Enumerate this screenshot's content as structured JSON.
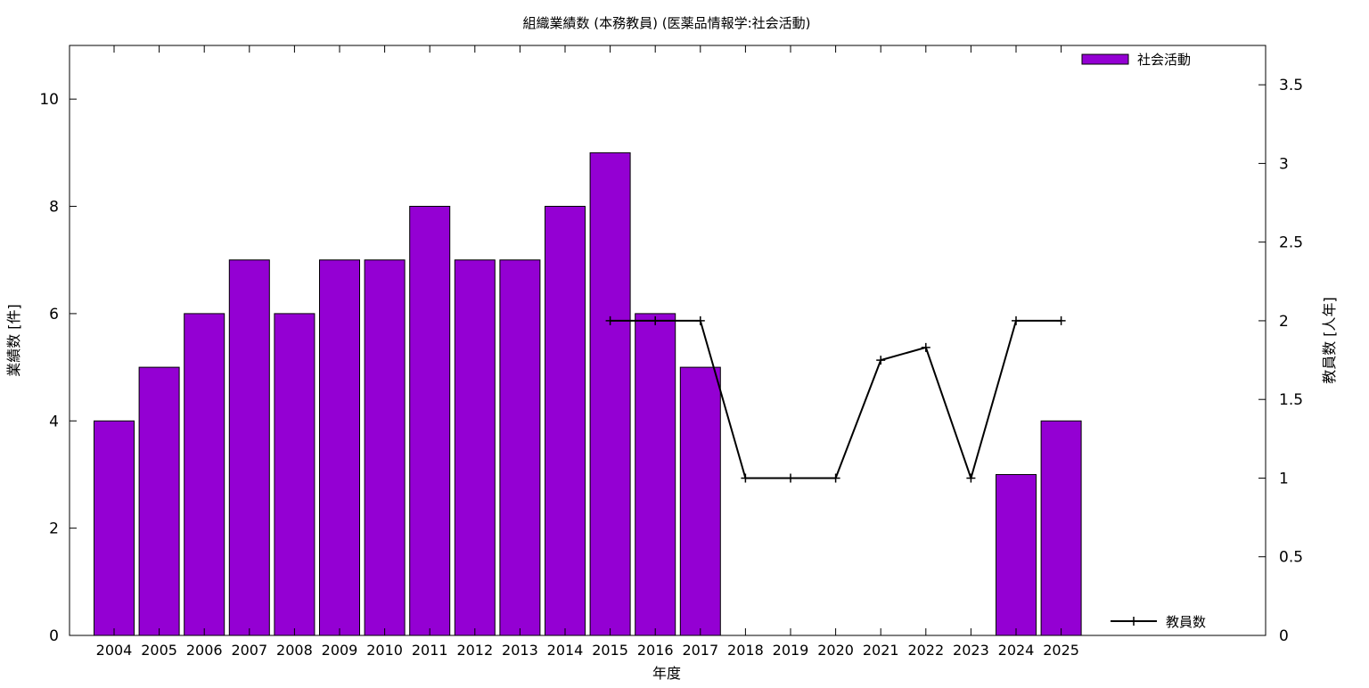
{
  "chart_data": {
    "type": "bar",
    "title": "組織業績数 (本務教員) (医薬品情報学:社会活動)",
    "xlabel": "年度",
    "ylabel": "業績数 [件]",
    "y2label": "教員数 [人年]",
    "categories": [
      "2004",
      "2005",
      "2006",
      "2007",
      "2008",
      "2009",
      "2010",
      "2011",
      "2012",
      "2013",
      "2014",
      "2015",
      "2016",
      "2017",
      "2018",
      "2019",
      "2020",
      "2021",
      "2022",
      "2023",
      "2024",
      "2025"
    ],
    "ylim": [
      0,
      11
    ],
    "y2lim": [
      0,
      3.75
    ],
    "yticks": [
      0,
      2,
      4,
      6,
      8,
      10
    ],
    "y2ticks": [
      0,
      0.5,
      1,
      1.5,
      2,
      2.5,
      3,
      3.5
    ],
    "grid": false,
    "legend_placement": "top-right (bars), bottom-right (line)",
    "series": [
      {
        "name": "社会活動",
        "kind": "bar",
        "axis": "left",
        "color": "#9400d3",
        "values": [
          4,
          5,
          6,
          7,
          6,
          7,
          7,
          8,
          7,
          7,
          8,
          9,
          6,
          5,
          0,
          0,
          0,
          0,
          0,
          0,
          3,
          4
        ]
      },
      {
        "name": "教員数",
        "kind": "line",
        "axis": "right",
        "color": "#000000",
        "values": [
          null,
          null,
          null,
          null,
          null,
          null,
          null,
          null,
          null,
          null,
          null,
          2,
          2,
          2,
          1,
          1,
          1,
          1.75,
          1.83,
          1,
          2,
          2
        ]
      }
    ]
  }
}
